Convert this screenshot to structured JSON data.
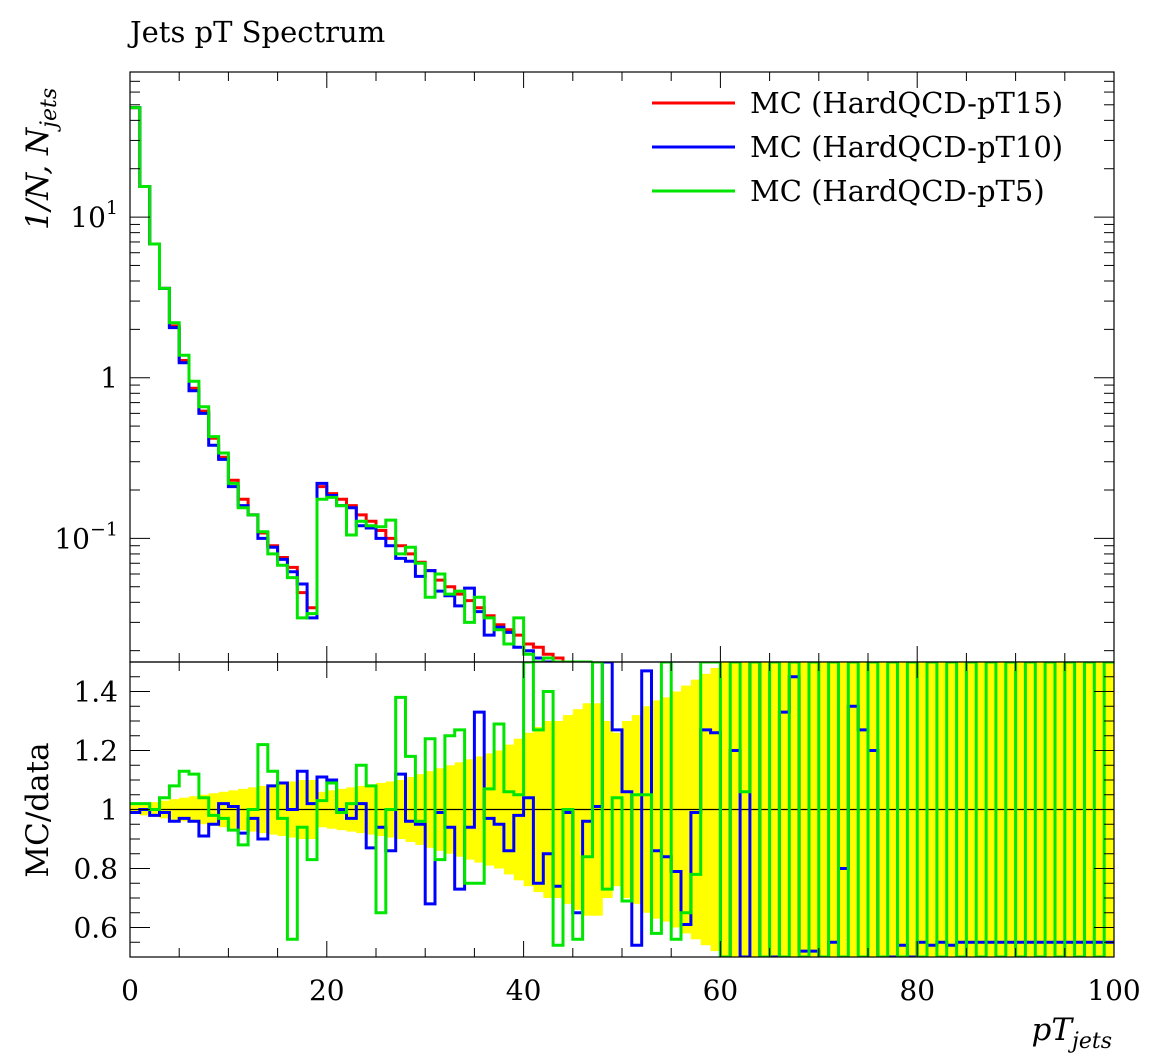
{
  "title": "Jets pT Spectrum",
  "chart_data": [
    {
      "type": "line",
      "title": "Jets pT Spectrum",
      "ylabel_prefix": "1/N, N",
      "ylabel_sub": "jets",
      "ylog": true,
      "ylim": [
        0.017,
        80
      ],
      "xlim": [
        0,
        100
      ],
      "bin_width": 1,
      "y_ticks": [
        {
          "value": 10,
          "base": "10",
          "exp": "1"
        },
        {
          "value": 1,
          "base": "1",
          "exp": ""
        },
        {
          "value": 0.1,
          "base": "10",
          "exp": "−1"
        }
      ],
      "legend_position": "top-right",
      "series": [
        {
          "name": "MC (HardQCD-pT15)",
          "color": "#ff0000",
          "values": [
            48,
            15.5,
            6.8,
            3.6,
            2.1,
            1.28,
            0.86,
            0.62,
            0.42,
            0.32,
            0.23,
            0.175,
            0.14,
            0.108,
            0.09,
            0.076,
            0.066,
            0.046,
            0.037,
            0.21,
            0.19,
            0.175,
            0.16,
            0.14,
            0.128,
            0.112,
            0.1,
            0.09,
            0.08,
            0.071,
            0.063,
            0.055,
            0.05,
            0.045,
            0.041,
            0.037,
            0.033,
            0.029,
            0.027,
            0.025,
            0.022,
            0.021,
            0.019,
            0.018,
            0.017,
            0.017,
            0.017
          ]
        },
        {
          "name": "MC (HardQCD-pT10)",
          "color": "#0000ff",
          "values": [
            48,
            15.5,
            6.8,
            3.6,
            2.05,
            1.24,
            0.83,
            0.6,
            0.38,
            0.31,
            0.21,
            0.16,
            0.14,
            0.1,
            0.088,
            0.074,
            0.062,
            0.052,
            0.032,
            0.22,
            0.185,
            0.16,
            0.155,
            0.12,
            0.116,
            0.1,
            0.09,
            0.075,
            0.072,
            0.058,
            0.063,
            0.047,
            0.044,
            0.038,
            0.049,
            0.035,
            0.025,
            0.028,
            0.026,
            0.021,
            0.02,
            0.018,
            0.017,
            0.017,
            0.017,
            0.017,
            0.017
          ]
        },
        {
          "name": "MC (HardQCD-pT5)",
          "color": "#00e600",
          "values": [
            48,
            15.5,
            6.8,
            3.6,
            2.2,
            1.38,
            0.95,
            0.66,
            0.43,
            0.34,
            0.22,
            0.155,
            0.14,
            0.11,
            0.08,
            0.068,
            0.057,
            0.032,
            0.034,
            0.175,
            0.18,
            0.16,
            0.105,
            0.128,
            0.12,
            0.118,
            0.13,
            0.08,
            0.088,
            0.07,
            0.043,
            0.06,
            0.045,
            0.047,
            0.03,
            0.043,
            0.032,
            0.027,
            0.022,
            0.032,
            0.019,
            0.017,
            0.018,
            0.017,
            0.017,
            0.017,
            0.017
          ]
        }
      ]
    },
    {
      "type": "line",
      "ylabel": "MC/data",
      "xlabel_prefix": "pT",
      "xlabel_sub": "jets",
      "xlim": [
        0,
        100
      ],
      "ylim": [
        0.5,
        1.5
      ],
      "y_ticks": [
        "0.6",
        "0.8",
        "1",
        "1.2",
        "1.4"
      ],
      "x_ticks": [
        "0",
        "20",
        "40",
        "60",
        "80",
        "100"
      ],
      "reference_line": 1,
      "uncertainty_band": {
        "color": "#ffff00",
        "half_width": [
          0.015,
          0.02,
          0.025,
          0.03,
          0.035,
          0.04,
          0.045,
          0.05,
          0.055,
          0.06,
          0.065,
          0.07,
          0.075,
          0.08,
          0.085,
          0.09,
          0.095,
          0.1,
          0.1,
          0.06,
          0.065,
          0.07,
          0.075,
          0.08,
          0.085,
          0.09,
          0.095,
          0.1,
          0.11,
          0.12,
          0.13,
          0.14,
          0.15,
          0.16,
          0.17,
          0.18,
          0.19,
          0.2,
          0.22,
          0.24,
          0.26,
          0.28,
          0.3,
          0.3,
          0.32,
          0.34,
          0.36,
          0.36,
          0.3,
          0.26,
          0.3,
          0.32,
          0.35,
          0.37,
          0.38,
          0.4,
          0.42,
          0.44,
          0.46,
          0.48,
          0.5,
          0.5,
          0.5,
          0.5,
          0.5,
          0.55,
          0.55,
          0.55,
          0.55,
          0.55,
          0.55,
          0.55,
          0.55,
          0.55,
          0.55,
          0.55,
          0.55,
          0.55,
          0.55,
          0.55,
          0.55,
          0.55,
          0.55,
          0.55,
          0.55,
          0.55,
          0.55,
          0.55,
          0.55,
          0.55,
          0.55,
          0.55,
          0.55,
          0.55,
          0.55,
          0.55,
          0.55,
          0.55,
          0.55,
          0.55
        ]
      },
      "series": [
        {
          "name": "MC (HardQCD-pT10)",
          "color": "#0000ff",
          "values": [
            0.99,
            1.0,
            0.98,
            0.99,
            0.96,
            0.97,
            0.96,
            0.91,
            0.95,
            1.02,
            1.01,
            0.92,
            0.97,
            0.9,
            1.08,
            1.09,
            1.0,
            1.13,
            1.02,
            1.11,
            1.1,
            1.0,
            0.97,
            1.02,
            0.87,
            0.94,
            0.86,
            1.12,
            0.96,
            0.95,
            0.68,
            0.99,
            0.94,
            0.73,
            0.94,
            1.33,
            0.97,
            0.95,
            0.86,
            0.98,
            1.04,
            0.75,
            0.85,
            0.74,
            0.99,
            0.65,
            0.96,
            1.01,
            1.5,
            1.27,
            1.06,
            0.54,
            1.47,
            0.86,
            0.84,
            0.79,
            0.61,
            0.99,
            1.27,
            1.26,
            0.48,
            1.2,
            0.5,
            1.5,
            0.48,
            0.48,
            1.33,
            1.45,
            0.52,
            0.52,
            0.5,
            0.55,
            0.8,
            1.35,
            1.27,
            1.2,
            0.5,
            0.48,
            0.54,
            0.45,
            0.55,
            0.54,
            0.55,
            0.54,
            0.55,
            0.55,
            0.55,
            0.55,
            0.55,
            0.55,
            0.55,
            0.55,
            0.55,
            0.55,
            0.55,
            0.55,
            0.55,
            0.55,
            0.55,
            0.55
          ]
        },
        {
          "name": "MC (HardQCD-pT5)",
          "color": "#00e600",
          "values": [
            1.02,
            1.02,
            1.0,
            1.04,
            1.08,
            1.13,
            1.12,
            1.04,
            0.98,
            0.97,
            0.93,
            0.88,
            1.0,
            1.22,
            1.13,
            0.97,
            0.56,
            0.94,
            0.83,
            1.03,
            1.09,
            0.99,
            1.02,
            1.15,
            1.08,
            0.65,
            1.0,
            1.38,
            1.18,
            0.96,
            1.24,
            0.83,
            1.25,
            1.27,
            0.75,
            0.75,
            1.07,
            1.29,
            1.06,
            1.05,
            1.5,
            1.27,
            1.4,
            0.54,
            1.0,
            0.56,
            0.84,
            1.5,
            0.73,
            1.04,
            0.69,
            1.05,
            1.05,
            0.58,
            1.5,
            0.56,
            0.65,
            0.78,
            1.5,
            1.5,
            0.5,
            1.5,
            1.06,
            1.5,
            0.5,
            1.5,
            0.5,
            1.5,
            0.5,
            1.5,
            0.5,
            1.5,
            0.5,
            1.5,
            0.5,
            1.5,
            0.5,
            1.5,
            0.5,
            1.5,
            0.5,
            1.5,
            0.5,
            1.5,
            0.5,
            1.5,
            0.5,
            1.5,
            0.5,
            1.5,
            0.5,
            1.5,
            0.5,
            1.5,
            0.5,
            1.5,
            0.5,
            1.5,
            0.5,
            1.5
          ]
        }
      ]
    }
  ]
}
